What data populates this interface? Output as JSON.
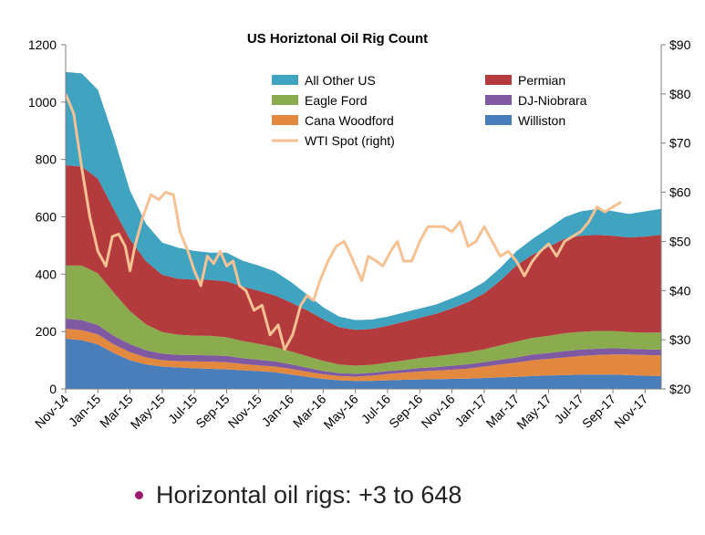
{
  "chart_data": {
    "type": "area",
    "title": "US Horiztonal Oil Rig Count",
    "x_tick_labels": [
      "Nov-14",
      "Jan-15",
      "Mar-15",
      "May-15",
      "Jul-15",
      "Sep-15",
      "Nov-15",
      "Jan-16",
      "Mar-16",
      "May-16",
      "Jul-16",
      "Sep-16",
      "Nov-16",
      "Jan-17",
      "Mar-17",
      "May-17",
      "Jul-17",
      "Sep-17",
      "Nov-17"
    ],
    "y_left": {
      "min": 0,
      "max": 1200,
      "ticks": [
        "0",
        "200",
        "400",
        "600",
        "800",
        "1000",
        "1200"
      ]
    },
    "y_right": {
      "min": 20,
      "max": 90,
      "ticks": [
        "$20",
        "$30",
        "$40",
        "$50",
        "$60",
        "$70",
        "$80",
        "$90"
      ]
    },
    "grid": false,
    "legend_position": "top-center",
    "x": [
      "Nov-14",
      "Dec-14",
      "Jan-15",
      "Feb-15",
      "Mar-15",
      "Apr-15",
      "May-15",
      "Jun-15",
      "Jul-15",
      "Aug-15",
      "Sep-15",
      "Oct-15",
      "Nov-15",
      "Dec-15",
      "Jan-16",
      "Feb-16",
      "Mar-16",
      "Apr-16",
      "May-16",
      "Jun-16",
      "Jul-16",
      "Aug-16",
      "Sep-16",
      "Oct-16",
      "Nov-16",
      "Dec-16",
      "Jan-17",
      "Feb-17",
      "Mar-17",
      "Apr-17",
      "May-17",
      "Jun-17",
      "Jul-17",
      "Aug-17",
      "Sep-17",
      "Oct-17",
      "Nov-17",
      "Dec-17"
    ],
    "series": [
      {
        "name": "Williston",
        "color": "#4a7ebb",
        "values": [
          175,
          170,
          155,
          125,
          100,
          85,
          78,
          75,
          72,
          70,
          68,
          65,
          62,
          58,
          50,
          42,
          35,
          30,
          28,
          28,
          30,
          32,
          33,
          34,
          35,
          36,
          38,
          40,
          42,
          45,
          47,
          48,
          50,
          50,
          50,
          48,
          46,
          45
        ]
      },
      {
        "name": "Cana Woodford",
        "color": "#e3883f",
        "values": [
          35,
          35,
          35,
          30,
          28,
          25,
          22,
          22,
          24,
          25,
          25,
          22,
          20,
          20,
          20,
          18,
          16,
          15,
          15,
          18,
          22,
          25,
          28,
          30,
          32,
          35,
          40,
          45,
          50,
          55,
          58,
          62,
          65,
          68,
          70,
          72,
          72,
          72
        ]
      },
      {
        "name": "DJ-Niobrara",
        "color": "#7f5aa2",
        "values": [
          35,
          35,
          33,
          30,
          28,
          25,
          23,
          22,
          22,
          22,
          22,
          20,
          20,
          18,
          16,
          14,
          12,
          10,
          10,
          10,
          10,
          10,
          12,
          12,
          14,
          15,
          15,
          17,
          18,
          20,
          20,
          22,
          22,
          22,
          22,
          20,
          20,
          20
        ]
      },
      {
        "name": "Eagle Ford",
        "color": "#8bac4e",
        "values": [
          185,
          190,
          180,
          150,
          115,
          90,
          75,
          70,
          68,
          68,
          65,
          60,
          55,
          50,
          45,
          40,
          35,
          30,
          28,
          28,
          30,
          32,
          35,
          38,
          40,
          42,
          45,
          50,
          55,
          58,
          60,
          62,
          62,
          62,
          60,
          58,
          58,
          60
        ]
      },
      {
        "name": "Permian",
        "color": "#b33b3d",
        "values": [
          350,
          345,
          330,
          290,
          250,
          220,
          200,
          195,
          195,
          195,
          195,
          190,
          185,
          180,
          170,
          160,
          145,
          130,
          125,
          125,
          128,
          135,
          140,
          148,
          160,
          175,
          195,
          225,
          265,
          290,
          310,
          330,
          335,
          335,
          332,
          330,
          335,
          340
        ]
      },
      {
        "name": "All Other US",
        "color": "#40a3c0",
        "values": [
          325,
          325,
          310,
          250,
          170,
          130,
          112,
          108,
          100,
          95,
          100,
          90,
          88,
          84,
          72,
          55,
          42,
          37,
          34,
          33,
          32,
          32,
          32,
          32,
          35,
          37,
          40,
          45,
          50,
          55,
          65,
          75,
          85,
          90,
          86,
          82,
          88,
          91
        ]
      }
    ],
    "line_series": {
      "name": "WTI Spot (right)",
      "color": "#f6c294",
      "axis": "right",
      "points": [
        [
          0,
          80
        ],
        [
          0.5,
          76
        ],
        [
          1.0,
          65
        ],
        [
          1.5,
          55
        ],
        [
          2.0,
          48
        ],
        [
          2.5,
          45
        ],
        [
          2.9,
          51
        ],
        [
          3.3,
          51.5
        ],
        [
          3.7,
          49
        ],
        [
          4.0,
          44
        ],
        [
          4.3,
          49
        ],
        [
          4.8,
          55
        ],
        [
          5.3,
          59.5
        ],
        [
          5.8,
          58.5
        ],
        [
          6.2,
          60
        ],
        [
          6.7,
          59.5
        ],
        [
          7.1,
          52
        ],
        [
          7.6,
          48
        ],
        [
          8.0,
          44
        ],
        [
          8.4,
          41
        ],
        [
          8.8,
          47
        ],
        [
          9.2,
          45.5
        ],
        [
          9.6,
          48
        ],
        [
          10.0,
          45
        ],
        [
          10.4,
          46
        ],
        [
          10.8,
          41
        ],
        [
          11.2,
          40
        ],
        [
          11.7,
          36
        ],
        [
          12.2,
          37
        ],
        [
          12.7,
          31
        ],
        [
          13.2,
          33
        ],
        [
          13.6,
          28
        ],
        [
          14.1,
          31
        ],
        [
          14.6,
          37
        ],
        [
          15.0,
          39
        ],
        [
          15.4,
          38
        ],
        [
          15.8,
          42
        ],
        [
          16.3,
          46
        ],
        [
          16.8,
          49
        ],
        [
          17.3,
          50
        ],
        [
          17.6,
          48
        ],
        [
          18.0,
          45
        ],
        [
          18.4,
          42
        ],
        [
          18.8,
          47
        ],
        [
          19.3,
          46
        ],
        [
          19.7,
          45
        ],
        [
          20.2,
          48
        ],
        [
          20.6,
          50
        ],
        [
          21.0,
          46
        ],
        [
          21.5,
          46
        ],
        [
          22.0,
          50
        ],
        [
          22.5,
          53
        ],
        [
          23.0,
          53
        ],
        [
          23.5,
          53
        ],
        [
          24.0,
          52
        ],
        [
          24.5,
          54
        ],
        [
          25.0,
          49
        ],
        [
          25.5,
          50
        ],
        [
          26.0,
          53
        ],
        [
          26.5,
          50
        ],
        [
          27.0,
          47
        ],
        [
          27.5,
          48
        ],
        [
          28.0,
          46
        ],
        [
          28.5,
          43
        ],
        [
          29.0,
          46
        ],
        [
          29.5,
          48
        ],
        [
          30.0,
          49.5
        ],
        [
          30.5,
          47
        ],
        [
          31.0,
          50
        ],
        [
          31.5,
          51
        ],
        [
          32.0,
          52
        ],
        [
          32.5,
          54
        ],
        [
          33.0,
          57
        ],
        [
          33.5,
          56
        ],
        [
          34.0,
          57
        ],
        [
          34.5,
          58
        ]
      ]
    },
    "legend": [
      "All Other US",
      "Permian",
      "Eagle Ford",
      "DJ-Niobrara",
      "Cana Woodford",
      "Williston",
      "WTI Spot (right)"
    ]
  },
  "bullet_text": "Horizontal oil rigs: +3 to 648"
}
